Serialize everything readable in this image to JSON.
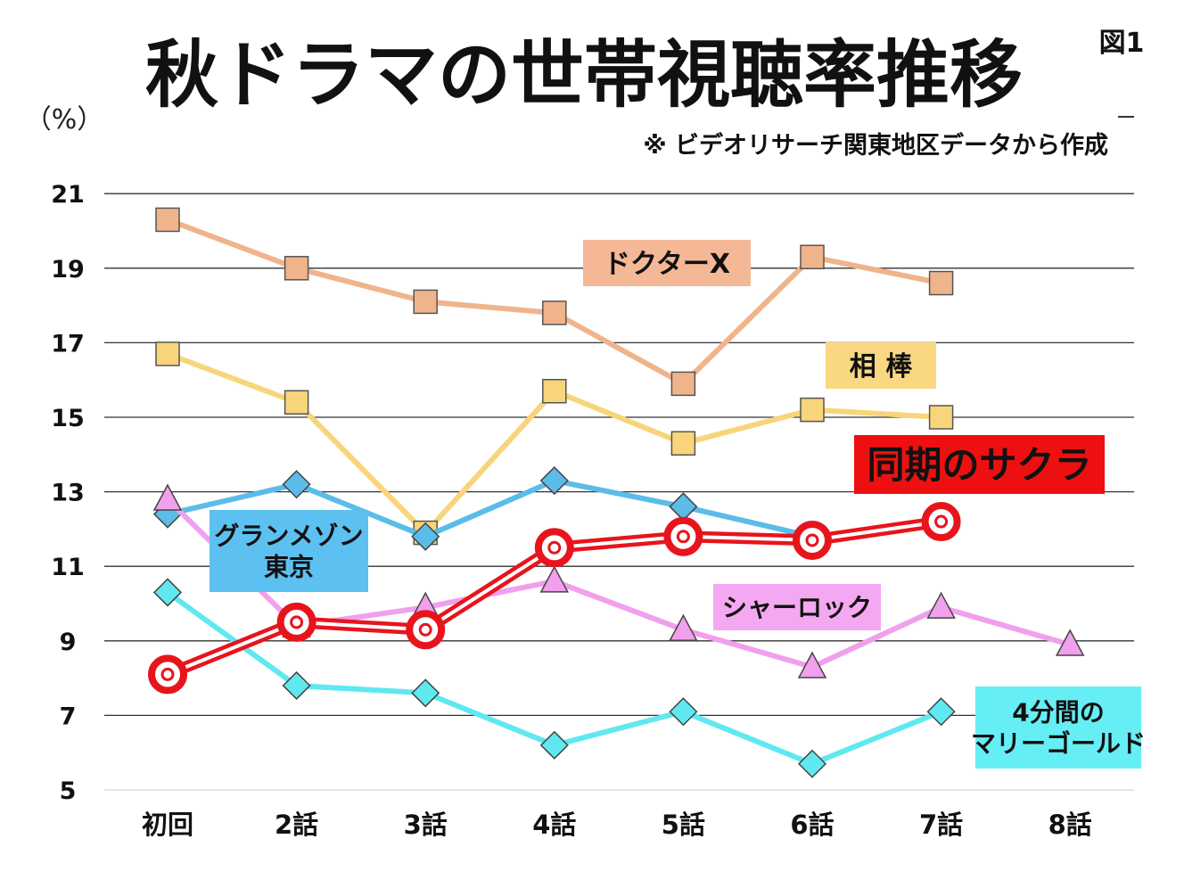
{
  "figure_label": "図1",
  "note": "※ ビデオリサーチ関東地区データから作成",
  "chart_data": {
    "type": "line",
    "title": "秋ドラマの世帯視聴率推移",
    "ylabel": "（%）",
    "xlabel": "",
    "ylim": [
      5,
      21
    ],
    "yticks": [
      5,
      7,
      9,
      11,
      13,
      15,
      17,
      19,
      21
    ],
    "grid": true,
    "categories": [
      "初回",
      "2話",
      "3話",
      "4話",
      "5話",
      "6話",
      "7話",
      "8話"
    ],
    "series": [
      {
        "name": "ドクターX",
        "color": "#f0b48c",
        "label_bg": "#f5b896",
        "label_fg": "#111111",
        "marker": "square",
        "values": [
          20.3,
          19.0,
          18.1,
          17.8,
          15.9,
          19.3,
          18.6,
          null
        ]
      },
      {
        "name": "相 棒",
        "color": "#f8d57a",
        "label_bg": "#fad882",
        "label_fg": "#111111",
        "marker": "square",
        "values": [
          16.7,
          15.4,
          11.9,
          15.7,
          14.3,
          15.2,
          15.0,
          null
        ]
      },
      {
        "name": "グランメゾン東京",
        "label_lines": [
          "グランメゾン",
          "東京"
        ],
        "color": "#5bbce8",
        "label_bg": "#5cc1f0",
        "label_fg": "#111111",
        "marker": "diamond",
        "values": [
          12.4,
          13.2,
          11.8,
          13.3,
          12.6,
          11.8,
          null,
          null
        ]
      },
      {
        "name": "シャーロック",
        "color": "#f0a0ec",
        "label_bg": "#f5a8f2",
        "label_fg": "#111111",
        "marker": "triangle",
        "values": [
          12.8,
          9.4,
          9.9,
          10.6,
          9.3,
          8.3,
          9.9,
          8.9
        ]
      },
      {
        "name": "4分間のマリーゴールド",
        "label_lines": [
          "4分間の",
          "マリーゴールド"
        ],
        "color": "#60e8f0",
        "label_bg": "#66eef5",
        "label_fg": "#111111",
        "marker": "diamond",
        "values": [
          10.3,
          7.8,
          7.6,
          6.2,
          7.1,
          5.7,
          7.1,
          null
        ]
      },
      {
        "name": "同期のサクラ",
        "color": "#e8141c",
        "label_bg": "#ee1010",
        "label_fg": "#111111",
        "marker": "ring",
        "values": [
          8.1,
          9.5,
          9.3,
          11.5,
          11.8,
          11.7,
          12.2,
          null
        ]
      }
    ]
  }
}
